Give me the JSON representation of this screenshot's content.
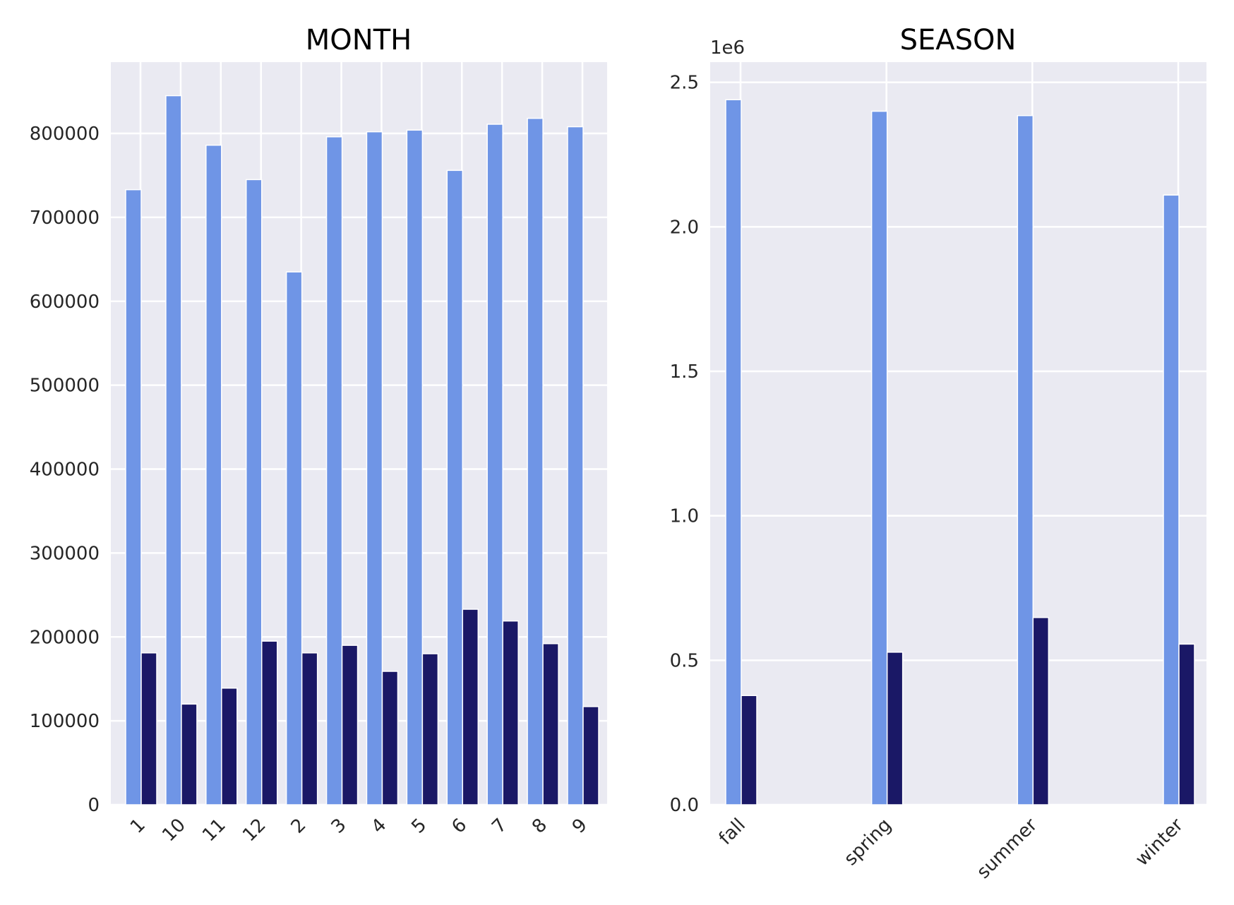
{
  "chart_data": [
    {
      "type": "bar",
      "title": "MONTH",
      "categories": [
        "1",
        "10",
        "11",
        "12",
        "2",
        "3",
        "4",
        "5",
        "6",
        "7",
        "8",
        "9"
      ],
      "series": [
        {
          "color": "#6f95e6",
          "values": [
            733000,
            845000,
            786000,
            745000,
            635000,
            796000,
            802000,
            804000,
            756000,
            811000,
            818000,
            808000
          ]
        },
        {
          "color": "#1a1866",
          "values": [
            181000,
            120000,
            139000,
            195000,
            181000,
            190000,
            159000,
            180000,
            233000,
            219000,
            192000,
            117000
          ]
        }
      ],
      "ylim": [
        0,
        885000
      ],
      "yticks": [
        0,
        100000,
        200000,
        300000,
        400000,
        500000,
        600000,
        700000,
        800000
      ],
      "ytick_labels": [
        "0",
        "100000",
        "200000",
        "300000",
        "400000",
        "500000",
        "600000",
        "700000",
        "800000"
      ],
      "grid": true
    },
    {
      "type": "bar",
      "title": "SEASON",
      "offset_text": "1e6",
      "categories": [
        "fall",
        "spring",
        "summer",
        "winter"
      ],
      "series": [
        {
          "color": "#6f95e6",
          "values": [
            2440000,
            2400000,
            2385000,
            2110000
          ]
        },
        {
          "color": "#1a1866",
          "values": [
            378000,
            528000,
            648000,
            556000
          ]
        }
      ],
      "ylim": [
        0,
        2570000
      ],
      "yticks": [
        0,
        500000,
        1000000,
        1500000,
        2000000,
        2500000
      ],
      "ytick_labels": [
        "0.0",
        "0.5",
        "1.0",
        "1.5",
        "2.0",
        "2.5"
      ],
      "grid": true
    }
  ]
}
